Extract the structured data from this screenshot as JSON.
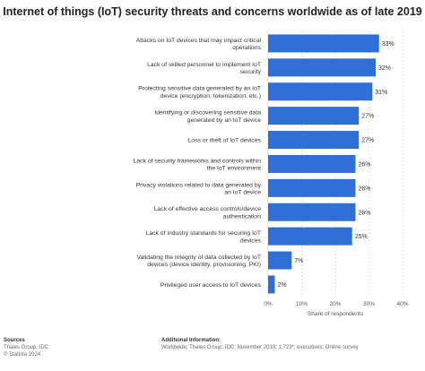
{
  "chart_data": {
    "type": "bar",
    "orientation": "horizontal",
    "title": "Internet of things (IoT) security threats and concerns worldwide as of late 2019",
    "xlabel": "Share of respondents",
    "ylabel": "",
    "xlim": [
      0,
      40
    ],
    "x_ticks": [
      "0%",
      "10%",
      "20%",
      "30%",
      "40%"
    ],
    "grid": true,
    "bar_color": "#2f6fd6",
    "categories": [
      [
        "Attacks on IoT devices that may impact critical",
        "operations"
      ],
      [
        "Lack of skilled personnel to implement IoT",
        "security"
      ],
      [
        "Protecting sensitive data generated by an IoT",
        "device (encryption, tokenization, etc.)"
      ],
      [
        "Identifying or discovering sensitive data",
        "generated by an IoT device"
      ],
      [
        "Loss or theft of IoT devices"
      ],
      [
        "Lack of security frameworks and controls within",
        "the IoT environment"
      ],
      [
        "Privacy violations related to data generated by",
        "an IoT device"
      ],
      [
        "Lack of effective access controls/device",
        "authentication"
      ],
      [
        "Lack of industry standards for securing IoT",
        "devices"
      ],
      [
        "Validating the integrity of data collected by IoT",
        "devices (device identity, provisioning, PKI)"
      ],
      [
        "Privileged user access to IoT devices"
      ]
    ],
    "values": [
      33,
      32,
      31,
      27,
      27,
      26,
      26,
      26,
      25,
      7,
      2
    ],
    "value_labels": [
      "33%",
      "32%",
      "31%",
      "27%",
      "27%",
      "26%",
      "26%",
      "26%",
      "25%",
      "7%",
      "2%"
    ]
  },
  "footer": {
    "sources_heading": "Sources",
    "sources_line1": "Thales Group; IDC",
    "sources_line2": "© Statista 2024",
    "info_heading": "Additional Information:",
    "info_line1": "Worldwide; Thales Group; IDC; November 2019; 1,723*; executives; Online survey"
  }
}
